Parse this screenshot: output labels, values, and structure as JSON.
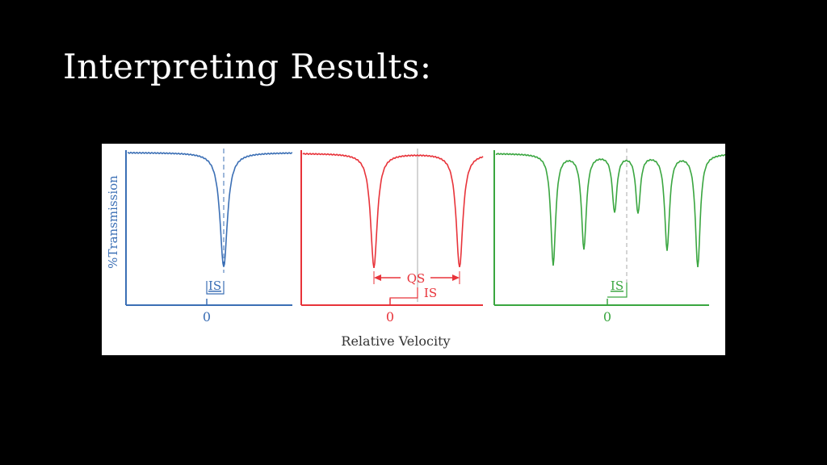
{
  "slide": {
    "title": "Interpreting Results:"
  },
  "figure": {
    "ylabel": "%Transmission",
    "xlabel": "Relative Velocity",
    "colors": {
      "blue": "#3b6fb5",
      "red": "#e8333a",
      "green": "#3aa640",
      "gray": "#aaaaaa",
      "text": "#333333"
    },
    "panels": [
      {
        "zero_label": "0",
        "is_label": "IS",
        "color": "#3b6fb5"
      },
      {
        "zero_label": "0",
        "is_label": "IS",
        "qs_label": "QS",
        "color": "#e8333a"
      },
      {
        "zero_label": "0",
        "is_label": "IS",
        "color": "#3aa640"
      }
    ]
  }
}
